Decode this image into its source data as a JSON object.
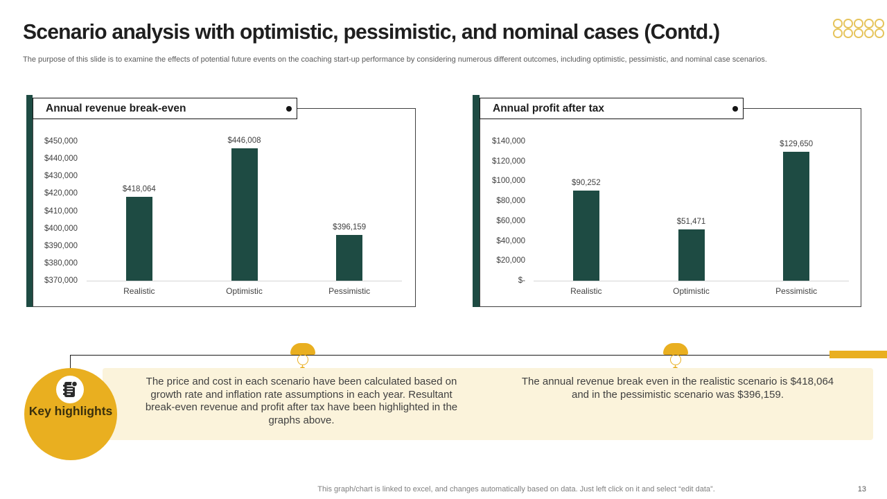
{
  "slide": {
    "title": "Scenario analysis with optimistic, pessimistic, and nominal cases (Contd.)",
    "subtitle": "The purpose of this slide is to examine the effects of potential future events on the coaching start-up performance by considering numerous different outcomes, including optimistic, pessimistic, and nominal case scenarios.",
    "footer_note": "This graph/chart is linked to excel,  and changes automatically based on data. Just left click on it and select “edit data”.",
    "page_number": "13"
  },
  "colors": {
    "accent_teal": "#1e4b43",
    "accent_yellow": "#e9af20",
    "decor_ring_yellow": "#e6c45c",
    "cream_band": "#fbf3db",
    "text_dark": "#1f1f1f",
    "text_gray": "#5a5a5a",
    "chart_text": "#404040"
  },
  "chart_data": [
    {
      "type": "bar",
      "title": "Annual revenue break-even",
      "categories": [
        "Realistic",
        "Optimistic",
        "Pessimistic"
      ],
      "values": [
        418064,
        446008,
        396159
      ],
      "data_labels": [
        "$418,064",
        "$446,008",
        "$396,159"
      ],
      "y_ticks": [
        "$450,000",
        "$440,000",
        "$430,000",
        "$420,000",
        "$410,000",
        "$400,000",
        "$390,000",
        "$380,000",
        "$370,000"
      ],
      "ylim": [
        370000,
        450000
      ],
      "xlabel": "",
      "ylabel": "",
      "grid": false,
      "legend": "none",
      "bar_color": "#1e4b43"
    },
    {
      "type": "bar",
      "title": "Annual profit after tax",
      "categories": [
        "Realistic",
        "Optimistic",
        "Pessimistic"
      ],
      "values": [
        90252,
        51471,
        129650
      ],
      "data_labels": [
        "$90,252",
        "$51,471",
        "$129,650"
      ],
      "y_ticks": [
        "$140,000",
        "$120,000",
        "$100,000",
        "$80,000",
        "$60,000",
        "$40,000",
        "$20,000",
        "$-"
      ],
      "ylim": [
        0,
        140000
      ],
      "xlabel": "",
      "ylabel": "",
      "grid": false,
      "legend": "none",
      "bar_color": "#1e4b43"
    }
  ],
  "highlights": {
    "label": "Key highlights",
    "icon": "notes-icon",
    "notes": [
      "The price and cost in each scenario have been calculated based on growth rate and inflation  rate assumptions in each year. Resultant  break-even revenue  and profit after tax have been highlighted in the graphs above.",
      "The annual revenue  break even in the realistic scenario is $418,064 and in the pessimistic scenario was $396,159."
    ]
  }
}
